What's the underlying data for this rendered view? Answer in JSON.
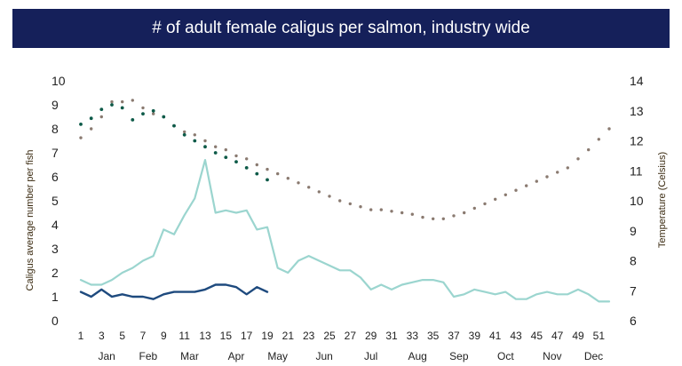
{
  "chart_data": {
    "type": "line",
    "title": "# of adult female caligus per salmon, industry wide",
    "ylabel": "Caligus average number per fish",
    "y2label": "Temperature (Celsius)",
    "ylim": [
      0,
      10
    ],
    "y2lim": [
      6,
      14
    ],
    "yticks": [
      "0",
      "1",
      "2",
      "3",
      "4",
      "5",
      "6",
      "7",
      "8",
      "9",
      "10"
    ],
    "y2ticks": [
      "6",
      "7",
      "8",
      "9",
      "10",
      "11",
      "12",
      "13",
      "14"
    ],
    "xlim": [
      1,
      52
    ],
    "xticks": [
      "1",
      "3",
      "5",
      "7",
      "9",
      "11",
      "13",
      "15",
      "17",
      "19",
      "21",
      "23",
      "25",
      "27",
      "29",
      "31",
      "33",
      "35",
      "37",
      "39",
      "41",
      "43",
      "45",
      "47",
      "49",
      "51"
    ],
    "months": [
      {
        "label": "Jan",
        "center": 3.5
      },
      {
        "label": "Feb",
        "center": 7.5
      },
      {
        "label": "Mar",
        "center": 11.5
      },
      {
        "label": "Apr",
        "center": 16
      },
      {
        "label": "May",
        "center": 20
      },
      {
        "label": "Jun",
        "center": 24.5
      },
      {
        "label": "Jul",
        "center": 29
      },
      {
        "label": "Aug",
        "center": 33.5
      },
      {
        "label": "Sep",
        "center": 37.5
      },
      {
        "label": "Oct",
        "center": 42
      },
      {
        "label": "Nov",
        "center": 46.5
      },
      {
        "label": "Dec",
        "center": 50.5
      }
    ],
    "series": [
      {
        "color": "#9bd5cf",
        "axis": "left",
        "style": "line",
        "x": [
          1,
          2,
          3,
          4,
          5,
          6,
          7,
          8,
          9,
          10,
          11,
          12,
          13,
          14,
          15,
          16,
          17,
          18,
          19,
          20,
          21,
          22,
          23,
          24,
          25,
          26,
          27,
          28,
          29,
          30,
          31,
          32,
          33,
          34,
          35,
          36,
          37,
          38,
          39,
          40,
          41,
          42,
          43,
          44,
          45,
          46,
          47,
          48,
          49,
          50,
          51,
          52
        ],
        "values": [
          1.7,
          1.5,
          1.5,
          1.7,
          2.0,
          2.2,
          2.5,
          2.7,
          3.8,
          3.6,
          4.4,
          5.1,
          6.7,
          4.5,
          4.6,
          4.5,
          4.6,
          3.8,
          3.9,
          2.2,
          2.0,
          2.5,
          2.7,
          2.5,
          2.3,
          2.1,
          2.1,
          1.8,
          1.3,
          1.5,
          1.3,
          1.5,
          1.6,
          1.7,
          1.7,
          1.6,
          1.0,
          1.1,
          1.3,
          1.2,
          1.1,
          1.2,
          0.9,
          0.9,
          1.1,
          1.2,
          1.1,
          1.1,
          1.3,
          1.1,
          0.8,
          0.8
        ]
      },
      {
        "color": "#1e4a7e",
        "axis": "left",
        "style": "line",
        "x": [
          1,
          2,
          3,
          4,
          5,
          6,
          7,
          8,
          9,
          10,
          11,
          12,
          13,
          14,
          15,
          16,
          17,
          18,
          19
        ],
        "values": [
          1.2,
          1.0,
          1.3,
          1.0,
          1.1,
          1.0,
          1.0,
          0.9,
          1.1,
          1.2,
          1.2,
          1.2,
          1.3,
          1.5,
          1.5,
          1.4,
          1.1,
          1.4,
          1.2
        ]
      },
      {
        "color": "#8a7a70",
        "axis": "right",
        "style": "dots",
        "x": [
          1,
          2,
          3,
          4,
          5,
          6,
          7,
          8,
          9,
          10,
          11,
          12,
          13,
          14,
          15,
          16,
          17,
          18,
          19,
          20,
          21,
          22,
          23,
          24,
          25,
          26,
          27,
          28,
          29,
          30,
          31,
          32,
          33,
          34,
          35,
          36,
          37,
          38,
          39,
          40,
          41,
          42,
          43,
          44,
          45,
          46,
          47,
          48,
          49,
          50,
          51,
          52
        ],
        "values": [
          12.1,
          12.4,
          12.8,
          13.3,
          13.3,
          13.35,
          13.1,
          12.9,
          12.8,
          12.5,
          12.3,
          12.2,
          12.0,
          11.8,
          11.7,
          11.5,
          11.4,
          11.2,
          11.05,
          10.9,
          10.75,
          10.6,
          10.45,
          10.3,
          10.15,
          10.0,
          9.9,
          9.8,
          9.7,
          9.7,
          9.65,
          9.6,
          9.55,
          9.45,
          9.4,
          9.4,
          9.5,
          9.6,
          9.75,
          9.9,
          10.05,
          10.2,
          10.35,
          10.5,
          10.65,
          10.8,
          10.95,
          11.1,
          11.4,
          11.7,
          12.05,
          12.4
        ]
      },
      {
        "color": "#0d5a48",
        "axis": "right",
        "style": "dots",
        "x": [
          1,
          2,
          3,
          4,
          5,
          6,
          7,
          8,
          9,
          10,
          11,
          12,
          13,
          14,
          15,
          16,
          17,
          18,
          19
        ],
        "values": [
          12.55,
          12.75,
          13.05,
          13.2,
          13.1,
          12.7,
          12.9,
          13.0,
          12.8,
          12.5,
          12.2,
          12.0,
          11.8,
          11.6,
          11.45,
          11.3,
          11.1,
          10.9,
          10.7
        ]
      }
    ]
  }
}
